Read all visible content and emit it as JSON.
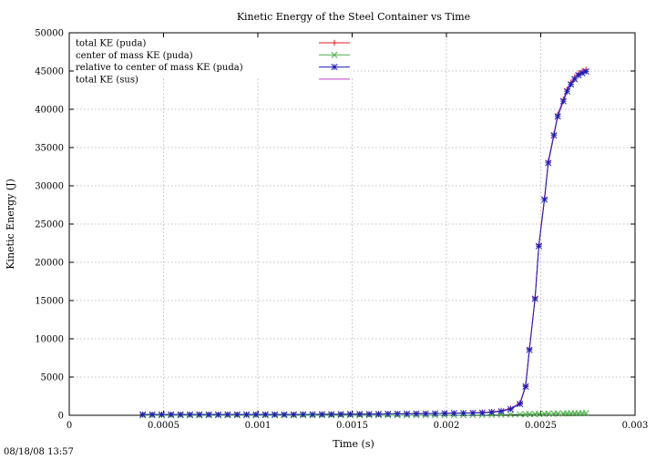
{
  "chart_data": {
    "type": "line",
    "title": "Kinetic Energy of the Steel Container vs Time",
    "xlabel": "Time (s)",
    "ylabel": "Kinetic Energy (J)",
    "xlim": [
      0,
      0.003
    ],
    "ylim": [
      0,
      50000
    ],
    "xticks": [
      0,
      0.0005,
      0.001,
      0.0015,
      0.002,
      0.0025,
      0.003
    ],
    "xtick_labels": [
      "0",
      "0.0005",
      "0.001",
      "0.0015",
      "0.002",
      "0.0025",
      "0.003"
    ],
    "yticks": [
      0,
      5000,
      10000,
      15000,
      20000,
      25000,
      30000,
      35000,
      40000,
      45000,
      50000
    ],
    "ytick_labels": [
      "0",
      "5000",
      "10000",
      "15000",
      "20000",
      "25000",
      "30000",
      "35000",
      "40000",
      "45000",
      "50000"
    ],
    "grid": true,
    "legend_position": "top-left",
    "series": [
      {
        "name": "total KE (puda)",
        "color": "#e41a1c",
        "marker": "plus",
        "x": [
          0.00039,
          0.00044,
          0.00049,
          0.00054,
          0.00059,
          0.00064,
          0.00069,
          0.00074,
          0.00079,
          0.00084,
          0.00089,
          0.00094,
          0.00099,
          0.00104,
          0.00109,
          0.00114,
          0.00119,
          0.00124,
          0.00129,
          0.00134,
          0.00139,
          0.00144,
          0.00149,
          0.00154,
          0.00159,
          0.00164,
          0.00169,
          0.00174,
          0.00179,
          0.00184,
          0.00189,
          0.00194,
          0.00199,
          0.00204,
          0.00209,
          0.00214,
          0.00219,
          0.00224,
          0.00229,
          0.00234,
          0.00239,
          0.00242,
          0.00244,
          0.00247,
          0.00249,
          0.00252,
          0.00254,
          0.00257,
          0.00259,
          0.00262,
          0.00264,
          0.00266,
          0.00268,
          0.0027,
          0.00272,
          0.00274
        ],
        "y": [
          100,
          100,
          100,
          100,
          100,
          100,
          100,
          100,
          100,
          100,
          100,
          100,
          100,
          100,
          100,
          100,
          100,
          120,
          120,
          130,
          130,
          140,
          150,
          150,
          160,
          170,
          180,
          190,
          200,
          210,
          220,
          230,
          250,
          280,
          300,
          330,
          380,
          450,
          600,
          900,
          1600,
          3900,
          8700,
          15400,
          22300,
          28400,
          33200,
          36800,
          39300,
          41300,
          42600,
          43500,
          44200,
          44700,
          45000,
          45200
        ]
      },
      {
        "name": "center of mass KE (puda)",
        "color": "#4daf4a",
        "marker": "x",
        "x": [
          0.00039,
          0.00044,
          0.00049,
          0.00054,
          0.00059,
          0.00064,
          0.00069,
          0.00074,
          0.00079,
          0.00084,
          0.00089,
          0.00094,
          0.00099,
          0.00104,
          0.00109,
          0.00114,
          0.00119,
          0.00124,
          0.00129,
          0.00134,
          0.00139,
          0.00144,
          0.00149,
          0.00154,
          0.00159,
          0.00164,
          0.00169,
          0.00174,
          0.00179,
          0.00184,
          0.00189,
          0.00194,
          0.00199,
          0.00204,
          0.00209,
          0.00214,
          0.00219,
          0.00224,
          0.00229,
          0.00234,
          0.00239,
          0.00242,
          0.00244,
          0.00247,
          0.00249,
          0.00252,
          0.00254,
          0.00257,
          0.00259,
          0.00262,
          0.00264,
          0.00266,
          0.00268,
          0.0027,
          0.00272,
          0.00274
        ],
        "y": [
          0,
          0,
          0,
          0,
          0,
          0,
          0,
          0,
          0,
          0,
          0,
          0,
          0,
          0,
          0,
          0,
          0,
          0,
          0,
          0,
          0,
          0,
          0,
          0,
          0,
          0,
          0,
          0,
          0,
          0,
          0,
          0,
          0,
          10,
          20,
          30,
          50,
          60,
          80,
          100,
          120,
          130,
          150,
          170,
          180,
          200,
          210,
          220,
          230,
          240,
          250,
          250,
          260,
          260,
          270,
          270
        ]
      },
      {
        "name": "relative to center of mass KE (puda)",
        "color": "#1f1fb4",
        "marker": "star",
        "x": [
          0.00039,
          0.00044,
          0.00049,
          0.00054,
          0.00059,
          0.00064,
          0.00069,
          0.00074,
          0.00079,
          0.00084,
          0.00089,
          0.00094,
          0.00099,
          0.00104,
          0.00109,
          0.00114,
          0.00119,
          0.00124,
          0.00129,
          0.00134,
          0.00139,
          0.00144,
          0.00149,
          0.00154,
          0.00159,
          0.00164,
          0.00169,
          0.00174,
          0.00179,
          0.00184,
          0.00189,
          0.00194,
          0.00199,
          0.00204,
          0.00209,
          0.00214,
          0.00219,
          0.00224,
          0.00229,
          0.00234,
          0.00239,
          0.00242,
          0.00244,
          0.00247,
          0.00249,
          0.00252,
          0.00254,
          0.00257,
          0.00259,
          0.00262,
          0.00264,
          0.00266,
          0.00268,
          0.0027,
          0.00272,
          0.00274
        ],
        "y": [
          100,
          100,
          100,
          100,
          100,
          100,
          100,
          100,
          100,
          100,
          100,
          100,
          100,
          100,
          100,
          100,
          100,
          120,
          120,
          130,
          130,
          140,
          150,
          150,
          160,
          170,
          180,
          190,
          200,
          210,
          220,
          230,
          250,
          270,
          280,
          300,
          330,
          390,
          520,
          800,
          1480,
          3770,
          8550,
          15230,
          22120,
          28200,
          32990,
          36580,
          39070,
          41060,
          42350,
          43250,
          43940,
          44440,
          44730,
          44930
        ]
      },
      {
        "name": "total KE (sus)",
        "color": "#c040c0",
        "marker": "none",
        "x": [
          0.00039,
          0.00044,
          0.00049,
          0.00054,
          0.00059,
          0.00064,
          0.00069,
          0.00074,
          0.00079,
          0.00084,
          0.00089,
          0.00094,
          0.00099,
          0.00104,
          0.00109,
          0.00114,
          0.00119,
          0.00124,
          0.00129,
          0.00134,
          0.00139,
          0.00144,
          0.00149,
          0.00154,
          0.00159,
          0.00164,
          0.00169,
          0.00174,
          0.00179,
          0.00184,
          0.00189,
          0.00194,
          0.00199,
          0.00204,
          0.00209,
          0.00214,
          0.00219,
          0.00224,
          0.00229,
          0.00234,
          0.00239,
          0.00242,
          0.00244,
          0.00247,
          0.00249,
          0.00252,
          0.00254,
          0.00257,
          0.00259,
          0.00262,
          0.00264,
          0.00266,
          0.00268,
          0.0027,
          0.00272,
          0.00274
        ],
        "y": [
          100,
          100,
          100,
          100,
          100,
          100,
          100,
          100,
          100,
          100,
          100,
          100,
          100,
          100,
          100,
          100,
          100,
          120,
          120,
          130,
          130,
          140,
          150,
          150,
          160,
          170,
          180,
          190,
          200,
          210,
          220,
          230,
          250,
          280,
          300,
          330,
          380,
          450,
          600,
          900,
          1600,
          3900,
          8700,
          15400,
          22300,
          28400,
          33200,
          36800,
          39300,
          41300,
          42600,
          43500,
          44200,
          44700,
          45000,
          45200
        ]
      }
    ]
  },
  "timestamp": "08/18/08 13:57"
}
